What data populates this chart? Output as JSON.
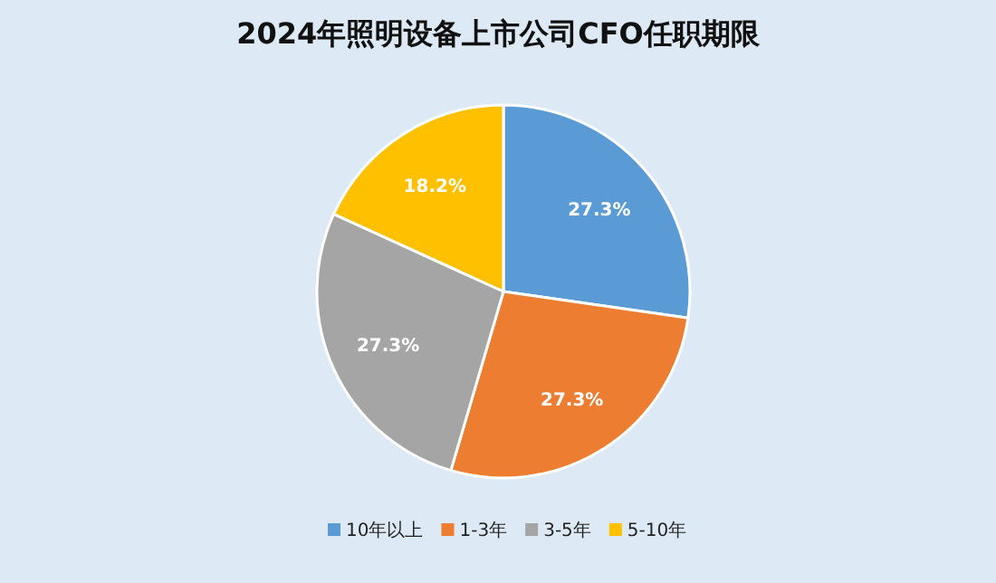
{
  "chart_data": {
    "type": "pie",
    "title": "2024年照明设备上市公司CFO任职期限",
    "categories": [
      "10年以上",
      "1-3年",
      "3-5年",
      "5-10年"
    ],
    "values": [
      27.3,
      27.3,
      27.3,
      18.2
    ],
    "colors": [
      "#5b9bd5",
      "#ed7d31",
      "#a5a5a5",
      "#ffc000"
    ],
    "value_labels": [
      "27.3%",
      "27.3%",
      "27.3%",
      "18.2%"
    ],
    "legend": "bottom"
  }
}
